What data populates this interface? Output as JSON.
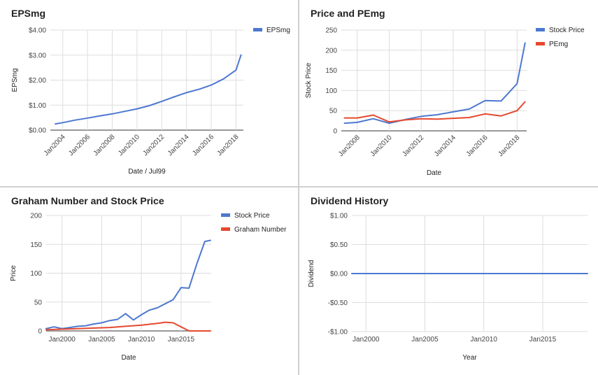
{
  "colors": {
    "blue": "#4d78d0",
    "red": "#e5492f"
  },
  "chart_data": [
    {
      "type": "line",
      "title": "EPSmg",
      "xlabel": "Date / Jul99",
      "ylabel": "EPSmg",
      "x_ticks": [
        "Jan2004",
        "Jan2006",
        "Jan2008",
        "Jan2010",
        "Jan2012",
        "Jan2014",
        "Jan2016",
        "Jan2018"
      ],
      "y_ticks": [
        "$0.00",
        "$1.00",
        "$2.00",
        "$3.00",
        "$4.00"
      ],
      "ylim": [
        0,
        4
      ],
      "xlim": [
        2003.0,
        2018.6
      ],
      "grid": true,
      "legend": "top-right",
      "series": [
        {
          "name": "EPSmg",
          "color": "#4d78d0",
          "x": [
            2003.4,
            2004.0,
            2005.0,
            2006.0,
            2007.0,
            2008.0,
            2009.0,
            2010.0,
            2011.0,
            2012.0,
            2013.0,
            2014.0,
            2015.0,
            2016.0,
            2017.0,
            2018.0,
            2018.4
          ],
          "y": [
            0.25,
            0.3,
            0.4,
            0.48,
            0.57,
            0.65,
            0.75,
            0.85,
            0.98,
            1.15,
            1.33,
            1.5,
            1.63,
            1.8,
            2.05,
            2.4,
            3.0
          ]
        }
      ]
    },
    {
      "type": "line",
      "title": "Price and PEmg",
      "xlabel": "Date",
      "ylabel": "Stock Price",
      "x_ticks": [
        "Jan2008",
        "Jan2010",
        "Jan2012",
        "Jan2014",
        "Jan2016",
        "Jan2018"
      ],
      "y_ticks": [
        "0",
        "50",
        "100",
        "150",
        "200",
        "250"
      ],
      "ylim": [
        0,
        250
      ],
      "xlim": [
        2007.0,
        2018.6
      ],
      "grid": true,
      "legend": "top-right",
      "series": [
        {
          "name": "Stock Price",
          "color": "#4d78d0",
          "x": [
            2007.2,
            2008.0,
            2009.0,
            2010.0,
            2011.0,
            2012.0,
            2013.0,
            2014.0,
            2015.0,
            2016.0,
            2017.0,
            2018.0,
            2018.5
          ],
          "y": [
            19,
            21,
            30,
            19,
            28,
            36,
            40,
            47,
            54,
            75,
            74,
            117,
            218
          ]
        },
        {
          "name": "PEmg",
          "color": "#e5492f",
          "x": [
            2007.2,
            2008.0,
            2009.0,
            2010.0,
            2011.0,
            2012.0,
            2013.0,
            2014.0,
            2015.0,
            2016.0,
            2017.0,
            2018.0,
            2018.5
          ],
          "y": [
            32,
            32,
            39,
            22,
            27,
            30,
            29,
            31,
            33,
            42,
            37,
            50,
            72
          ]
        }
      ]
    },
    {
      "type": "line",
      "title": "Graham Number and Stock Price",
      "xlabel": "Date",
      "ylabel": "Price",
      "x_ticks": [
        "Jan2000",
        "Jan2005",
        "Jan2010",
        "Jan2015"
      ],
      "y_ticks": [
        "0",
        "50",
        "100",
        "150",
        "200"
      ],
      "ylim": [
        0,
        200
      ],
      "xlim": [
        1998.0,
        2018.8
      ],
      "grid": true,
      "legend": "top-right",
      "series": [
        {
          "name": "Stock Price",
          "color": "#4d78d0",
          "x": [
            1998.0,
            1999.0,
            2000.0,
            2001.0,
            2002.0,
            2003.0,
            2004.0,
            2005.0,
            2006.0,
            2007.0,
            2008.0,
            2009.0,
            2010.0,
            2011.0,
            2012.0,
            2013.0,
            2014.0,
            2015.0,
            2016.0,
            2017.0,
            2018.0,
            2018.7
          ],
          "y": [
            4,
            7,
            4,
            6,
            8,
            9,
            12,
            14,
            18,
            20,
            30,
            19,
            28,
            36,
            40,
            47,
            54,
            75,
            74,
            117,
            155,
            157
          ]
        },
        {
          "name": "Graham Number",
          "color": "#e5492f",
          "x": [
            1998.0,
            2000.0,
            2002.0,
            2004.0,
            2006.0,
            2008.0,
            2010.0,
            2012.0,
            2013.0,
            2014.0,
            2015.0,
            2016.0,
            2017.0,
            2018.7
          ],
          "y": [
            2,
            3,
            4,
            5,
            6,
            8,
            10,
            13,
            15,
            14,
            7,
            0,
            0,
            0
          ]
        }
      ]
    },
    {
      "type": "line",
      "title": "Dividend History",
      "xlabel": "Year",
      "ylabel": "Dividend",
      "x_ticks": [
        "Jan2000",
        "Jan2005",
        "Jan2010",
        "Jan2015"
      ],
      "y_ticks": [
        "-$1.00",
        "-$0.50",
        "$0.00",
        "$0.50",
        "$1.00"
      ],
      "ylim": [
        -1,
        1
      ],
      "xlim": [
        1998.8,
        2018.8
      ],
      "grid": true,
      "legend": "none",
      "series": [
        {
          "color": "#4d78d0",
          "x": [
            1998.8,
            2018.8
          ],
          "y": [
            0,
            0
          ]
        }
      ]
    }
  ]
}
